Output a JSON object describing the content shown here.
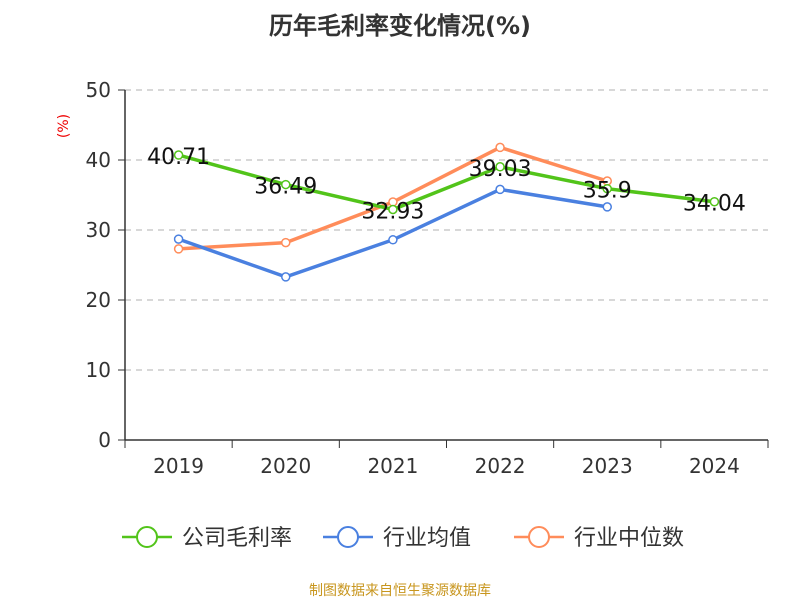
{
  "chart_data": {
    "type": "line",
    "title": "历年毛利率变化情况(%)",
    "ylabel": "(%)",
    "categories": [
      "2019",
      "2020",
      "2021",
      "2022",
      "2023",
      "2024"
    ],
    "ylim": [
      0,
      50
    ],
    "yticks": [
      0,
      10,
      20,
      30,
      40,
      50
    ],
    "grid": true,
    "legend_position": "bottom",
    "series": [
      {
        "name": "公司毛利率",
        "color": "#52c41a",
        "values": [
          40.71,
          36.49,
          32.93,
          39.03,
          35.9,
          34.04
        ],
        "labels": [
          "40.71",
          "36.49",
          "32.93",
          "39.03",
          "35.9",
          "34.04"
        ]
      },
      {
        "name": "行业均值",
        "color": "#4a80e0",
        "values": [
          28.7,
          23.3,
          28.6,
          35.8,
          33.3,
          null
        ]
      },
      {
        "name": "行业中位数",
        "color": "#ff8c5a",
        "values": [
          27.3,
          28.2,
          34.0,
          41.8,
          37.0,
          null
        ]
      }
    ]
  },
  "source": "制图数据来自恒生聚源数据库"
}
